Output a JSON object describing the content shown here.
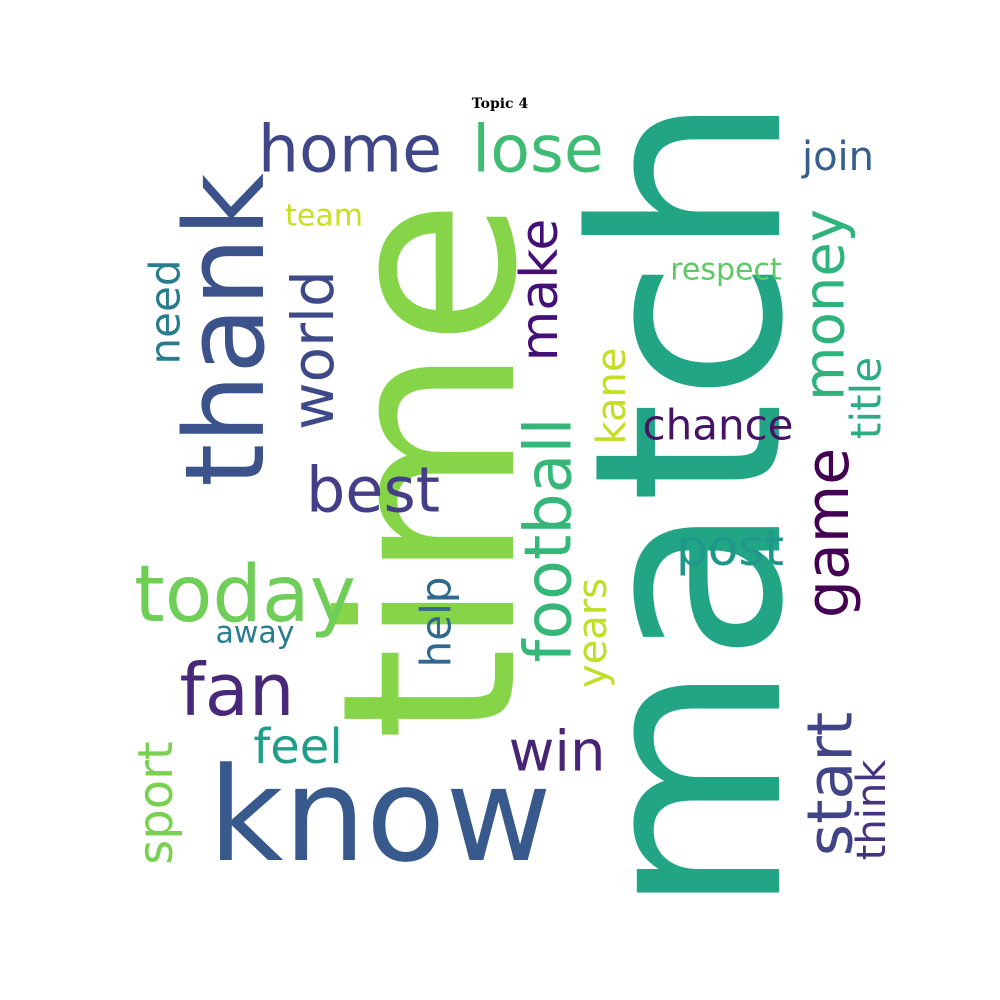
{
  "title": "Topic 4",
  "words": [
    {
      "text": "match",
      "color": "#21a585"
    },
    {
      "text": "time",
      "color": "#86d549"
    },
    {
      "text": "know",
      "color": "#38598c"
    },
    {
      "text": "thank",
      "color": "#3b528b"
    },
    {
      "text": "home",
      "color": "#3f4788"
    },
    {
      "text": "lose",
      "color": "#3fbc73"
    },
    {
      "text": "join",
      "color": "#355f8d"
    },
    {
      "text": "team",
      "color": "#c8e020"
    },
    {
      "text": "respect",
      "color": "#5ec962"
    },
    {
      "text": "world",
      "color": "#3e4989"
    },
    {
      "text": "make",
      "color": "#440f76"
    },
    {
      "text": "money",
      "color": "#2eb37c"
    },
    {
      "text": "need",
      "color": "#287c8e"
    },
    {
      "text": "title",
      "color": "#28ae80"
    },
    {
      "text": "kane",
      "color": "#c2df23"
    },
    {
      "text": "chance",
      "color": "#471365"
    },
    {
      "text": "best",
      "color": "#433e85"
    },
    {
      "text": "football",
      "color": "#35b779"
    },
    {
      "text": "game",
      "color": "#440154"
    },
    {
      "text": "today",
      "color": "#6ece58"
    },
    {
      "text": "post",
      "color": "#1f988b"
    },
    {
      "text": "help",
      "color": "#31688e"
    },
    {
      "text": "years",
      "color": "#bddf26"
    },
    {
      "text": "away",
      "color": "#297b8e"
    },
    {
      "text": "fan",
      "color": "#482878"
    },
    {
      "text": "feel",
      "color": "#1f9e89"
    },
    {
      "text": "win",
      "color": "#482475"
    },
    {
      "text": "start",
      "color": "#414487"
    },
    {
      "text": "sport",
      "color": "#7ad151"
    },
    {
      "text": "think",
      "color": "#46337f"
    }
  ]
}
